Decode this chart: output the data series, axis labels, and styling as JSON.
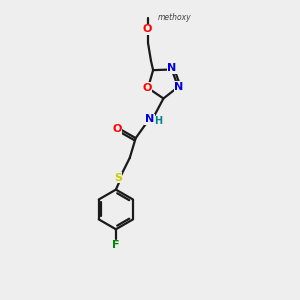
{
  "bg_color": "#eeeeee",
  "bond_color": "#1a1a1a",
  "atom_colors": {
    "O": "#ff0000",
    "N": "#0000dd",
    "S": "#cccc00",
    "F": "#008800",
    "H": "#008888",
    "C": "#1a1a1a"
  },
  "figsize": [
    3.0,
    3.0
  ],
  "dpi": 100,
  "lw": 1.6,
  "ring_r": 16,
  "benz_r": 20
}
